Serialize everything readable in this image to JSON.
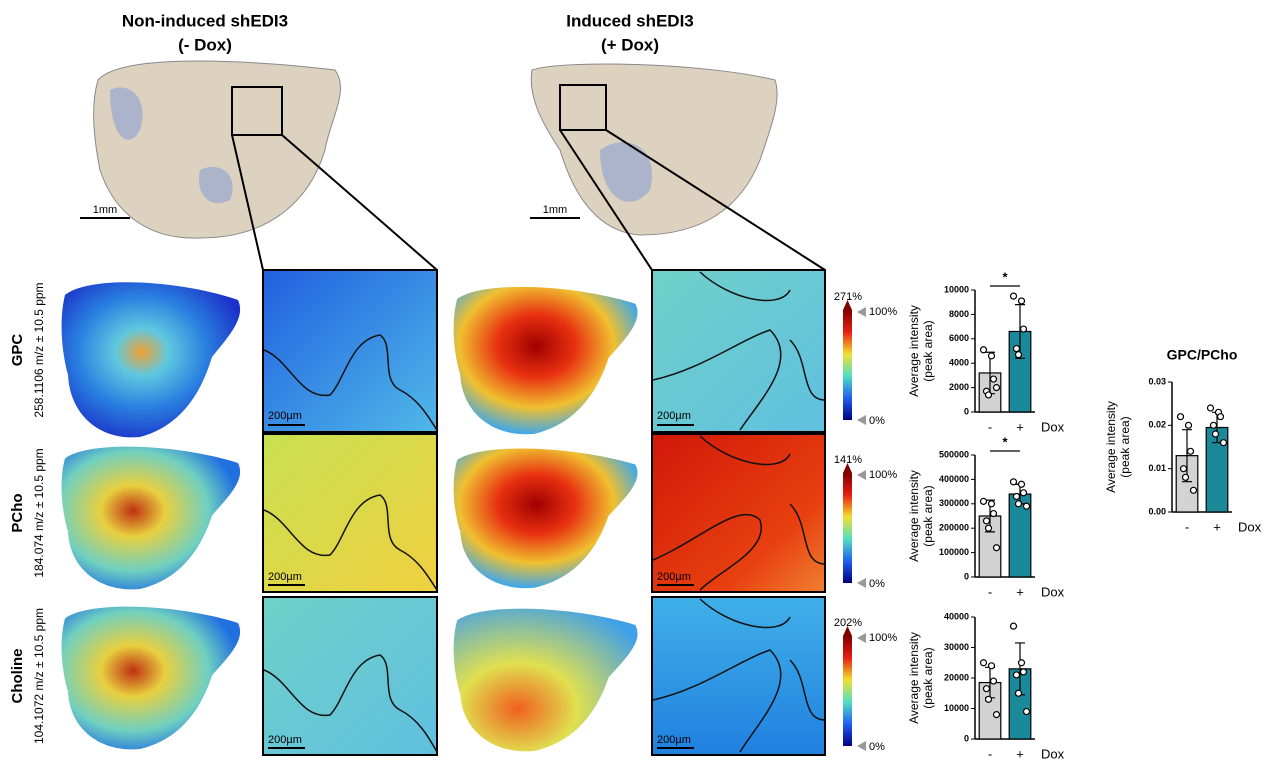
{
  "figure": {
    "headers": [
      {
        "line1": "Non-induced shEDI3",
        "line2": "(- Dox)"
      },
      {
        "line1": "Induced shEDI3",
        "line2": "(+ Dox)"
      }
    ],
    "scale_large": "1mm",
    "scale_small": "200µm",
    "colorbar_top": "100%",
    "colorbar_bottom": "0%",
    "rows": [
      {
        "name": "GPC",
        "mz": "258.1106 m/z ± 10.5 ppm",
        "max": "271%"
      },
      {
        "name": "PCho",
        "mz": "184.074  m/z ± 10.5 ppm",
        "max": "141%"
      },
      {
        "name": "Choline",
        "mz": "104.1072 m/z ± 10.5 ppm",
        "max": "202%"
      }
    ]
  },
  "chart_data": [
    {
      "type": "bar",
      "y_label": [
        "Average intensity",
        "(peak area)"
      ],
      "x_label": "Dox",
      "categories": [
        "-",
        "+"
      ],
      "colors": [
        "#d3d3d3",
        "#1a8a9a"
      ],
      "values": [
        3200,
        6600
      ],
      "errors": [
        1700,
        2200
      ],
      "points": [
        [
          5100,
          4600,
          2700,
          1700,
          1400,
          2000
        ],
        [
          9500,
          9100,
          6800,
          5200,
          4700
        ]
      ],
      "significance": "*",
      "ylim": [
        0,
        10000
      ],
      "yticks": [
        0,
        2000,
        4000,
        6000,
        8000,
        10000
      ]
    },
    {
      "type": "bar",
      "y_label": [
        "Average intensity",
        "(peak area)"
      ],
      "x_label": "Dox",
      "categories": [
        "-",
        "+"
      ],
      "colors": [
        "#d3d3d3",
        "#1a8a9a"
      ],
      "values": [
        250000,
        340000
      ],
      "errors": [
        65000,
        40000
      ],
      "points": [
        [
          310000,
          300000,
          260000,
          230000,
          200000,
          120000
        ],
        [
          390000,
          380000,
          345000,
          330000,
          300000,
          290000
        ]
      ],
      "significance": "*",
      "ylim": [
        0,
        500000
      ],
      "yticks": [
        0,
        100000,
        200000,
        300000,
        400000,
        500000
      ]
    },
    {
      "type": "bar",
      "y_label": [
        "Average intensity",
        "(peak area)"
      ],
      "x_label": "Dox",
      "categories": [
        "-",
        "+"
      ],
      "colors": [
        "#d3d3d3",
        "#1a8a9a"
      ],
      "values": [
        18500,
        23000
      ],
      "errors": [
        5000,
        8500
      ],
      "points": [
        [
          25000,
          24000,
          19000,
          16500,
          13000,
          8000
        ],
        [
          37000,
          25000,
          22000,
          21000,
          15000,
          9000
        ]
      ],
      "ylim": [
        0,
        40000
      ],
      "yticks": [
        0,
        10000,
        20000,
        30000,
        40000
      ]
    },
    {
      "type": "bar",
      "title": "GPC/PCho",
      "y_label": [
        "Average intensity",
        "(peak area)"
      ],
      "x_label": "Dox",
      "categories": [
        "-",
        "+"
      ],
      "colors": [
        "#d3d3d3",
        "#1a8a9a"
      ],
      "values": [
        0.013,
        0.0195
      ],
      "errors": [
        0.006,
        0.0035
      ],
      "points": [
        [
          0.022,
          0.02,
          0.014,
          0.01,
          0.008,
          0.005
        ],
        [
          0.024,
          0.023,
          0.022,
          0.02,
          0.018,
          0.016
        ]
      ],
      "ylim": [
        0,
        0.03
      ],
      "yticks": [
        {
          "value": 0,
          "label": "0.00"
        },
        0.01,
        0.02,
        0.03
      ]
    }
  ]
}
